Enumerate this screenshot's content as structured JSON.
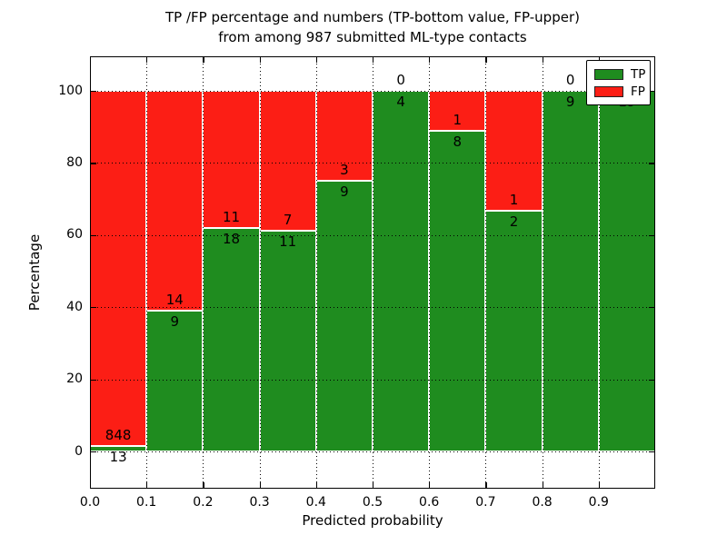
{
  "title": {
    "line1": "TP /FP percentage and numbers (TP-bottom value, FP-upper)",
    "line2": "from among 987 submitted ML-type contacts"
  },
  "axes": {
    "xlabel": "Predicted probability",
    "ylabel": "Percentage",
    "yticks": [
      0,
      20,
      40,
      60,
      80,
      100
    ],
    "xticks": [
      "0.0",
      "0.1",
      "0.2",
      "0.3",
      "0.4",
      "0.5",
      "0.6",
      "0.7",
      "0.8",
      "0.9"
    ],
    "ylim": [
      -10,
      110
    ],
    "xlim": [
      0.0,
      1.0
    ],
    "grid": "dotted"
  },
  "legend": {
    "position": "upper-right",
    "entries": [
      {
        "label": "TP",
        "color": "#1f8c1f"
      },
      {
        "label": "FP",
        "color": "#fc1e15"
      }
    ]
  },
  "colors": {
    "tp": "#1f8c1f",
    "fp": "#fc1e15",
    "bar_edge": "#ffffff",
    "text": "#000000",
    "background": "#ffffff"
  },
  "chart_data": {
    "type": "bar",
    "stacked": true,
    "normalized_to_percent": true,
    "bin_width": 0.1,
    "bin_starts": [
      0.0,
      0.1,
      0.2,
      0.3,
      0.4,
      0.5,
      0.6,
      0.7,
      0.8,
      0.9
    ],
    "categories": [
      "0.0-0.1",
      "0.1-0.2",
      "0.2-0.3",
      "0.3-0.4",
      "0.4-0.5",
      "0.5-0.6",
      "0.6-0.7",
      "0.7-0.8",
      "0.8-0.9",
      "0.9-1.0"
    ],
    "series": [
      {
        "name": "TP",
        "color": "#1f8c1f",
        "counts": [
          13,
          9,
          18,
          11,
          9,
          4,
          8,
          2,
          9,
          19
        ]
      },
      {
        "name": "FP",
        "color": "#fc1e15",
        "counts": [
          848,
          14,
          11,
          7,
          3,
          0,
          1,
          1,
          0,
          0
        ]
      }
    ],
    "tp_percent": [
      1.5,
      39.1,
      62.1,
      61.1,
      75.0,
      100.0,
      88.9,
      66.7,
      100.0,
      100.0
    ],
    "total_contacts": 987,
    "title": "TP /FP percentage and numbers (TP-bottom value, FP-upper) from among 987 submitted ML-type contacts",
    "xlabel": "Predicted probability",
    "ylabel": "Percentage",
    "ylim": [
      -10,
      110
    ],
    "legend_position": "upper-right"
  }
}
